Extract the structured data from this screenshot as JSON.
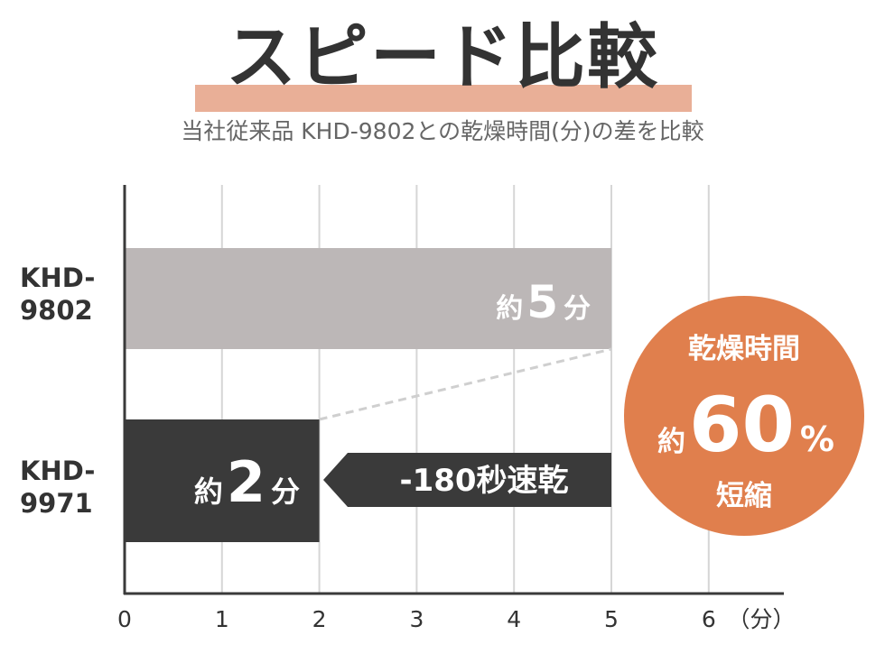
{
  "title": "スピード比較",
  "subtitle": "当社従来品 KHD-9802との乾燥時間(分)の差を比較",
  "colors": {
    "title_highlight": "#e9af97",
    "old_bar": "#bcb7b7",
    "new_bar": "#3a3a3a",
    "arrow": "#3a3a3a",
    "badge": "#e07f4d"
  },
  "chart_data": {
    "type": "bar",
    "orientation": "horizontal",
    "categories": [
      "KHD-9802",
      "KHD-9971"
    ],
    "category_lines": [
      [
        "KHD-",
        "9802"
      ],
      [
        "KHD-",
        "9971"
      ]
    ],
    "values": [
      5,
      2
    ],
    "value_labels": [
      {
        "prefix": "約",
        "number": "5",
        "unit": "分"
      },
      {
        "prefix": "約",
        "number": "2",
        "unit": "分"
      }
    ],
    "x_ticks": [
      "0",
      "1",
      "2",
      "3",
      "4",
      "5",
      "6"
    ],
    "x_unit": "（分）",
    "xlim": [
      0,
      6.5
    ],
    "grid": true,
    "difference_label": "-180秒速乾"
  },
  "badge": {
    "line1": "乾燥時間",
    "prefix": "約",
    "number": "60",
    "percent": "%",
    "line3": "短縮"
  }
}
